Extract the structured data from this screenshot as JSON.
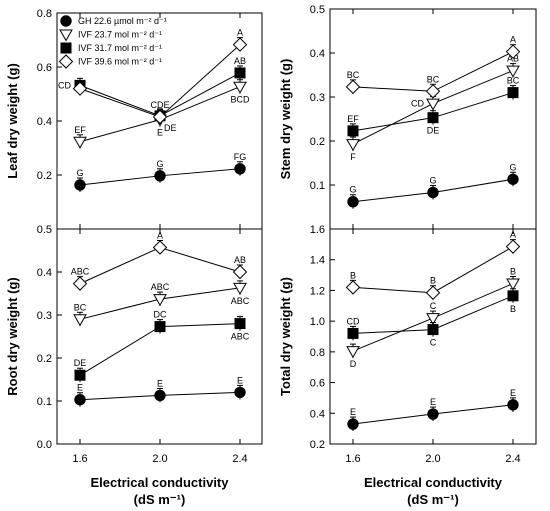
{
  "chart_data": [
    {
      "type": "line",
      "panel": "leaf",
      "ylabel": "Leaf dry weight (g)",
      "xlabel": "",
      "x": [
        1.6,
        2.0,
        2.4
      ],
      "xticks": [
        "1.6",
        "2.0",
        "2.4"
      ],
      "ylim": [
        0.0,
        0.8
      ],
      "yticks": [
        "0.0",
        "0.2",
        "0.4",
        "0.6",
        "0.8"
      ],
      "yticks_shown": [
        0.2,
        0.4,
        0.6,
        0.8
      ],
      "legend_position": "top-left",
      "series": [
        {
          "name": "GH 22.6 µmol m⁻² d⁻¹",
          "marker": "circle",
          "values": [
            0.163,
            0.197,
            0.223
          ],
          "letters": [
            "G",
            "G",
            "FG"
          ],
          "letter_pos": [
            "above",
            "above",
            "above"
          ]
        },
        {
          "name": "IVF 23.7 mol m⁻² d⁻¹",
          "marker": "triangle",
          "values": [
            0.323,
            0.405,
            0.527
          ],
          "letters": [
            "EF",
            "E",
            "BCD"
          ],
          "letter_pos": [
            "above",
            "below",
            "below"
          ]
        },
        {
          "name": "IVF 31.7 mol m⁻² d⁻¹",
          "marker": "square",
          "values": [
            0.532,
            0.419,
            0.578
          ],
          "letters": [
            "CD",
            "DE",
            "AB"
          ],
          "letter_pos": [
            "left",
            "below-right",
            "above"
          ]
        },
        {
          "name": "IVF 39.6 mol m⁻² d⁻¹",
          "marker": "diamond",
          "values": [
            0.52,
            0.415,
            0.683
          ],
          "letters": [
            "",
            "CDE",
            "A"
          ],
          "letter_pos": [
            "",
            "above",
            "above"
          ]
        }
      ]
    },
    {
      "type": "line",
      "panel": "stem",
      "ylabel": "Stem dry weight (g)",
      "xlabel": "",
      "x": [
        1.6,
        2.0,
        2.4
      ],
      "xticks": [
        "1.6",
        "2.0",
        "2.4"
      ],
      "ylim": [
        0.0,
        0.5
      ],
      "yticks": [
        "0.0",
        "0.1",
        "0.2",
        "0.3",
        "0.4",
        "0.5"
      ],
      "yticks_shown": [
        0.1,
        0.2,
        0.3,
        0.4,
        0.5
      ],
      "series": [
        {
          "name": "GH 22.6 µmol m⁻² d⁻¹",
          "marker": "circle",
          "values": [
            0.062,
            0.083,
            0.113
          ],
          "letters": [
            "G",
            "G",
            "G"
          ],
          "letter_pos": [
            "above",
            "above",
            "above"
          ]
        },
        {
          "name": "IVF 23.7 mol m⁻² d⁻¹",
          "marker": "triangle",
          "values": [
            0.193,
            0.285,
            0.36
          ],
          "letters": [
            "F",
            "CD",
            "AB"
          ],
          "letter_pos": [
            "below",
            "left",
            "above"
          ]
        },
        {
          "name": "IVF 31.7 mol m⁻² d⁻¹",
          "marker": "square",
          "values": [
            0.223,
            0.253,
            0.31
          ],
          "letters": [
            "EF",
            "DE",
            "BC"
          ],
          "letter_pos": [
            "above",
            "below",
            "above"
          ]
        },
        {
          "name": "IVF 39.6 mol m⁻² d⁻¹",
          "marker": "diamond",
          "values": [
            0.323,
            0.313,
            0.403
          ],
          "letters": [
            "BC",
            "BC",
            "A"
          ],
          "letter_pos": [
            "above",
            "above",
            "above"
          ]
        }
      ]
    },
    {
      "type": "line",
      "panel": "root",
      "ylabel": "Root dry weight (g)",
      "xlabel": "Electrical conductivity\n(dS m⁻¹)",
      "x": [
        1.6,
        2.0,
        2.4
      ],
      "xticks": [
        "1.6",
        "2.0",
        "2.4"
      ],
      "ylim": [
        0.0,
        0.5
      ],
      "yticks": [
        "0.0",
        "0.1",
        "0.2",
        "0.3",
        "0.4",
        "0.5"
      ],
      "yticks_shown": [
        0.0,
        0.1,
        0.2,
        0.3,
        0.4,
        0.5
      ],
      "series": [
        {
          "name": "GH 22.6 µmol m⁻² d⁻¹",
          "marker": "circle",
          "values": [
            0.103,
            0.113,
            0.12
          ],
          "letters": [
            "E",
            "E",
            "E"
          ],
          "letter_pos": [
            "above",
            "above",
            "above"
          ]
        },
        {
          "name": "IVF 23.7 mol m⁻² d⁻¹",
          "marker": "triangle",
          "values": [
            0.29,
            0.337,
            0.363
          ],
          "letters": [
            "BC",
            "ABC",
            "ABC"
          ],
          "letter_pos": [
            "above",
            "above",
            "below"
          ]
        },
        {
          "name": "IVF 31.7 mol m⁻² d⁻¹",
          "marker": "square",
          "values": [
            0.16,
            0.273,
            0.28
          ],
          "letters": [
            "DE",
            "DC",
            "ABC"
          ],
          "letter_pos": [
            "above",
            "above",
            "below"
          ]
        },
        {
          "name": "IVF 39.6 mol m⁻² d⁻¹",
          "marker": "diamond",
          "values": [
            0.373,
            0.457,
            0.4
          ],
          "letters": [
            "ABC",
            "A",
            "AB"
          ],
          "letter_pos": [
            "above",
            "above",
            "above"
          ]
        }
      ]
    },
    {
      "type": "line",
      "panel": "total",
      "ylabel": "Total dry weight (g)",
      "xlabel": "Electrical conductivity\n(dS m⁻¹)",
      "x": [
        1.6,
        2.0,
        2.4
      ],
      "xticks": [
        "1.6",
        "2.0",
        "2.4"
      ],
      "ylim": [
        0.2,
        1.6
      ],
      "yticks": [
        "0.2",
        "0.4",
        "0.6",
        "0.8",
        "1.0",
        "1.2",
        "1.4",
        "1.6"
      ],
      "yticks_shown": [
        0.2,
        0.4,
        0.6,
        0.8,
        1.0,
        1.2,
        1.4,
        1.6
      ],
      "series": [
        {
          "name": "GH 22.6 µmol m⁻² d⁻¹",
          "marker": "circle",
          "values": [
            0.33,
            0.395,
            0.455
          ],
          "letters": [
            "E",
            "E",
            "E"
          ],
          "letter_pos": [
            "above",
            "above",
            "above"
          ]
        },
        {
          "name": "IVF 23.7 mol m⁻² d⁻¹",
          "marker": "triangle",
          "values": [
            0.805,
            1.02,
            1.245
          ],
          "letters": [
            "D",
            "C",
            "B"
          ],
          "letter_pos": [
            "below",
            "above",
            "above"
          ]
        },
        {
          "name": "IVF 31.7 mol m⁻² d⁻¹",
          "marker": "square",
          "values": [
            0.92,
            0.945,
            1.165
          ],
          "letters": [
            "CD",
            "C",
            "B"
          ],
          "letter_pos": [
            "above",
            "below",
            "below"
          ]
        },
        {
          "name": "IVF 39.6 mol m⁻² d⁻¹",
          "marker": "diamond",
          "values": [
            1.22,
            1.185,
            1.485
          ],
          "letters": [
            "B",
            "B",
            "A"
          ],
          "letter_pos": [
            "above",
            "above",
            "above"
          ]
        }
      ]
    }
  ]
}
